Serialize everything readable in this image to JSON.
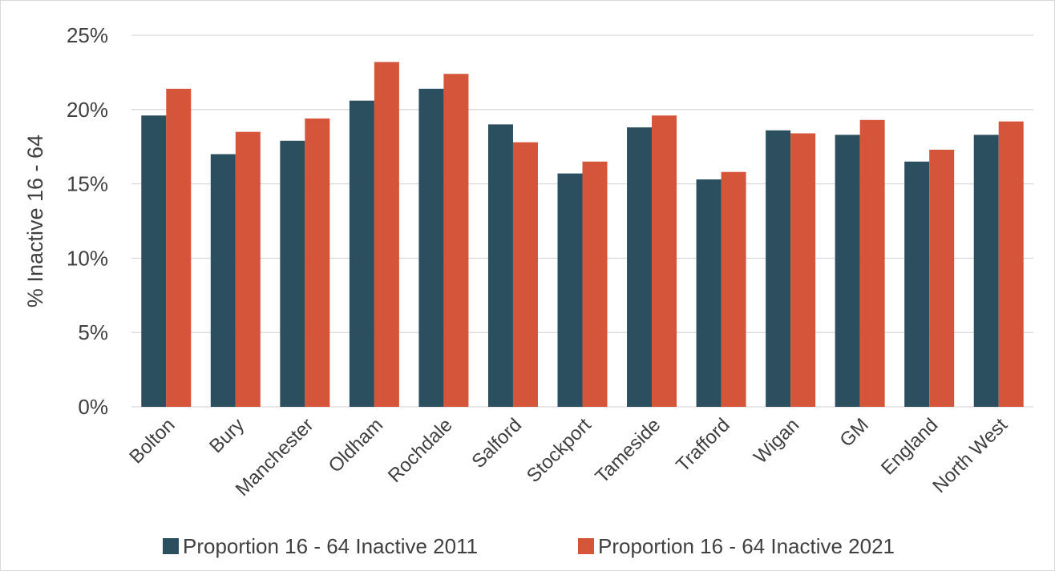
{
  "chart_data": {
    "type": "bar",
    "title": "",
    "xlabel": "",
    "ylabel": "% Inactive 16 - 64",
    "ylim": [
      0,
      25
    ],
    "yticks": [
      0,
      5,
      10,
      15,
      20,
      25
    ],
    "ytick_labels": [
      "0%",
      "5%",
      "10%",
      "15%",
      "20%",
      "25%"
    ],
    "grid": true,
    "legend_position": "bottom",
    "categories": [
      "Bolton",
      "Bury",
      "Manchester",
      "Oldham",
      "Rochdale",
      "Salford",
      "Stockport",
      "Tameside",
      "Trafford",
      "Wigan",
      "GM",
      "England",
      "North West"
    ],
    "series": [
      {
        "name": "Proportion 16 - 64 Inactive  2011",
        "color": "#2b4f5e",
        "values": [
          19.6,
          17.0,
          17.9,
          20.6,
          21.4,
          19.0,
          15.7,
          18.8,
          15.3,
          18.6,
          18.3,
          16.5,
          18.3
        ]
      },
      {
        "name": "Proportion 16 - 64 Inactive  2021",
        "color": "#d4553a",
        "values": [
          21.4,
          18.5,
          19.4,
          23.2,
          22.4,
          17.8,
          16.5,
          19.6,
          15.8,
          18.4,
          19.3,
          17.3,
          19.2
        ]
      }
    ]
  }
}
